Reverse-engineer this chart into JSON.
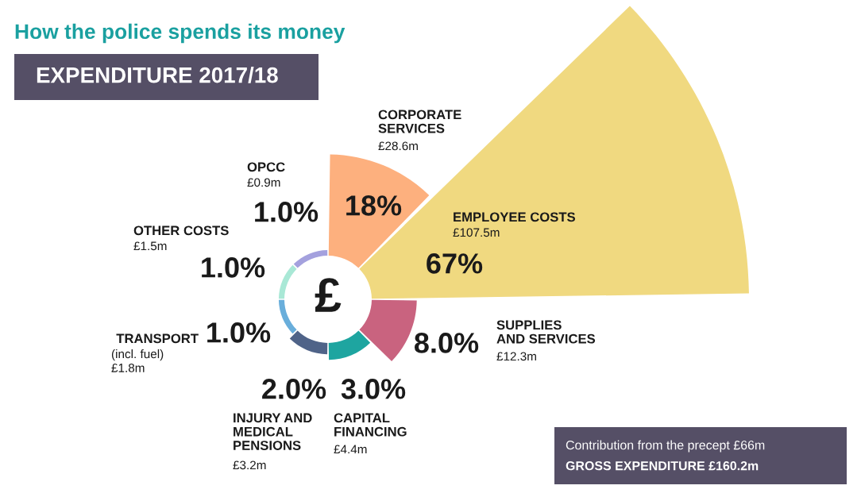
{
  "chart_data": {
    "type": "other",
    "title": "How the police spends its money",
    "subtitle": "EXPENDITURE 2017/18",
    "categories": [
      "CORPORATE\nSERVICES",
      "EMPLOYEE COSTS",
      "SUPPLIES\nAND SERVICES",
      "CAPITAL\nFINANCING",
      "INJURY AND\nMEDICAL\nPENSIONS",
      "TRANSPORT",
      "OTHER COSTS",
      "OPCC"
    ],
    "values": [
      18,
      67,
      8.0,
      3.0,
      2.0,
      1.0,
      1.0,
      1.0
    ],
    "value_labels": [
      "18%",
      "67%",
      "8.0%",
      "3.0%",
      "2.0%",
      "1.0%",
      "1.0%",
      "1.0%"
    ],
    "colors": [
      "#fdb07e",
      "#f0d980",
      "#c9637f",
      "#1ea5a0",
      "#4f6388",
      "#69aedb",
      "#a9e8d6",
      "#a4a1de"
    ],
    "annotations": [
      "£28.6m",
      "£107.5m",
      "£12.3m",
      "£4.4m",
      "£3.2m",
      "(incl. fuel)\n£1.8m",
      "£1.5m",
      "£0.9m",
      "£",
      "Contribution from the precept £66m",
      "GROSS EXPENDITURE £160.2m"
    ]
  }
}
